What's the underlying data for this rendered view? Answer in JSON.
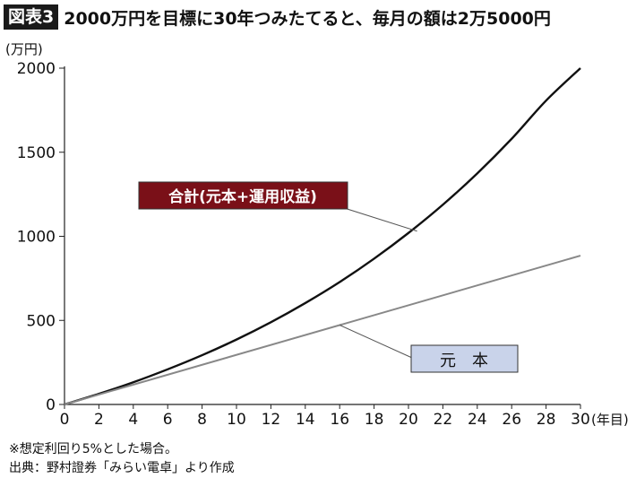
{
  "header": {
    "badge": "図表3",
    "title": "2000万円を目標に30年つみたてると、毎月の額は2万5000円"
  },
  "chart_data": {
    "type": "line",
    "ylabel": "(万円)",
    "xlabel": "(年目)",
    "xlim": [
      0,
      30
    ],
    "ylim": [
      0,
      2000
    ],
    "x_ticks": [
      0,
      2,
      4,
      6,
      8,
      10,
      12,
      14,
      16,
      18,
      20,
      22,
      24,
      26,
      28,
      30
    ],
    "y_ticks": [
      0,
      500,
      1000,
      1500,
      2000
    ],
    "grid": false,
    "series": [
      {
        "name": "合計(元本+運用収益)",
        "color": "#111111",
        "label_bg": "#7a1018",
        "label_fg": "#ffffff",
        "x": [
          0,
          2,
          4,
          6,
          8,
          10,
          12,
          14,
          16,
          18,
          20,
          22,
          24,
          26,
          28,
          30
        ],
        "y": [
          0,
          63,
          132,
          209,
          293,
          386,
          489,
          603,
          728,
          867,
          1020,
          1188,
          1374,
          1580,
          1807,
          2000
        ]
      },
      {
        "name": "元　本",
        "color": "#888888",
        "label_bg": "#c9d3ea",
        "label_fg": "#111111",
        "x": [
          0,
          30
        ],
        "y": [
          0,
          885
        ]
      }
    ]
  },
  "notes": [
    "※想定利回り5%とした場合。",
    "出典：野村證券「みらい電卓」より作成"
  ]
}
